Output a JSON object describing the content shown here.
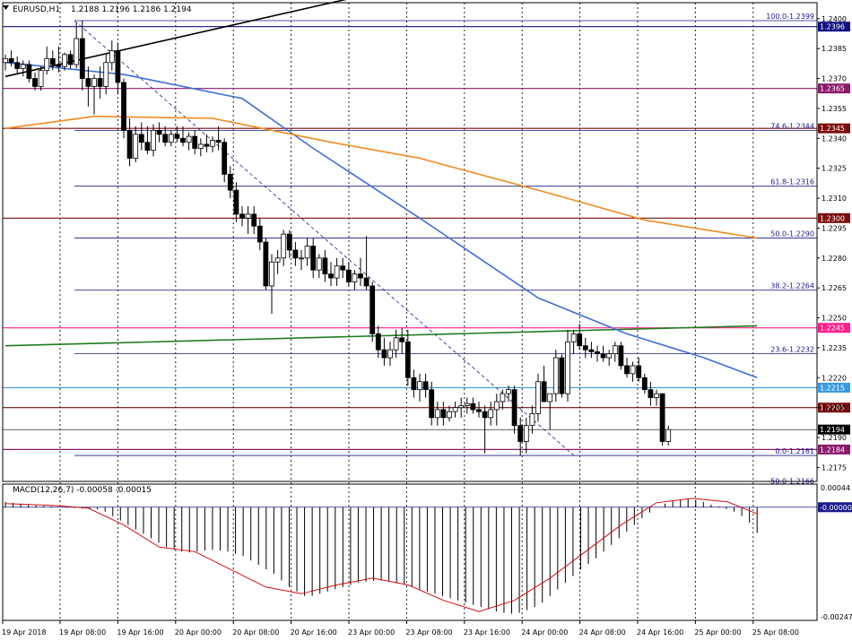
{
  "header": {
    "symbol": "EURUSD,H1",
    "ohlc": "1.2188 1.2196 1.2186 1.2194"
  },
  "macd_header": "MACD(12,26,7) -0.00058 -0.00015",
  "chart_data": {
    "type": "candlestick",
    "timeframe": "H1",
    "price_axis": {
      "min": 1.2168,
      "max": 1.2408,
      "ticks": [
        "1.2400",
        "1.2385",
        "1.2370",
        "1.2355",
        "1.2340",
        "1.2325",
        "1.2310",
        "1.2295",
        "1.2280",
        "1.2265",
        "1.2250",
        "1.2235",
        "1.2220",
        "1.2205",
        "1.2190",
        "1.2175"
      ]
    },
    "time_labels": [
      "19 Apr 2018",
      "19 Apr 08:00",
      "19 Apr 16:00",
      "20 Apr 00:00",
      "20 Apr 08:00",
      "20 Apr 16:00",
      "23 Apr 00:00",
      "23 Apr 08:00",
      "23 Apr 16:00",
      "24 Apr 00:00",
      "24 Apr 08:00",
      "24 Apr 16:00",
      "25 Apr 00:00",
      "25 Apr 08:00"
    ],
    "candles": [
      {
        "o": 1.2378,
        "h": 1.2382,
        "l": 1.2374,
        "c": 1.238
      },
      {
        "o": 1.238,
        "h": 1.2384,
        "l": 1.2376,
        "c": 1.2378
      },
      {
        "o": 1.2378,
        "h": 1.2381,
        "l": 1.2372,
        "c": 1.2375
      },
      {
        "o": 1.2375,
        "h": 1.2379,
        "l": 1.2371,
        "c": 1.2377
      },
      {
        "o": 1.2377,
        "h": 1.2379,
        "l": 1.2368,
        "c": 1.237
      },
      {
        "o": 1.237,
        "h": 1.2373,
        "l": 1.2364,
        "c": 1.2366
      },
      {
        "o": 1.2366,
        "h": 1.2376,
        "l": 1.2364,
        "c": 1.2374
      },
      {
        "o": 1.2374,
        "h": 1.2386,
        "l": 1.2372,
        "c": 1.238
      },
      {
        "o": 1.238,
        "h": 1.2384,
        "l": 1.2374,
        "c": 1.2377
      },
      {
        "o": 1.2377,
        "h": 1.2386,
        "l": 1.2373,
        "c": 1.2376
      },
      {
        "o": 1.2376,
        "h": 1.2383,
        "l": 1.2374,
        "c": 1.2382
      },
      {
        "o": 1.2382,
        "h": 1.2384,
        "l": 1.2375,
        "c": 1.2377
      },
      {
        "o": 1.2377,
        "h": 1.2398,
        "l": 1.2375,
        "c": 1.239
      },
      {
        "o": 1.239,
        "h": 1.2399,
        "l": 1.2364,
        "c": 1.237
      },
      {
        "o": 1.237,
        "h": 1.2376,
        "l": 1.2356,
        "c": 1.2366
      },
      {
        "o": 1.2366,
        "h": 1.2372,
        "l": 1.2352,
        "c": 1.237
      },
      {
        "o": 1.237,
        "h": 1.2376,
        "l": 1.236,
        "c": 1.2366
      },
      {
        "o": 1.2366,
        "h": 1.2382,
        "l": 1.2362,
        "c": 1.2378
      },
      {
        "o": 1.2378,
        "h": 1.2389,
        "l": 1.2374,
        "c": 1.2384
      },
      {
        "o": 1.2384,
        "h": 1.2388,
        "l": 1.2362,
        "c": 1.2368
      },
      {
        "o": 1.2368,
        "h": 1.237,
        "l": 1.234,
        "c": 1.2344
      },
      {
        "o": 1.2344,
        "h": 1.235,
        "l": 1.2326,
        "c": 1.233
      },
      {
        "o": 1.233,
        "h": 1.2346,
        "l": 1.2328,
        "c": 1.2342
      },
      {
        "o": 1.2342,
        "h": 1.2348,
        "l": 1.2334,
        "c": 1.2338
      },
      {
        "o": 1.2338,
        "h": 1.2346,
        "l": 1.2332,
        "c": 1.2334
      },
      {
        "o": 1.2334,
        "h": 1.2347,
        "l": 1.2331,
        "c": 1.2344
      },
      {
        "o": 1.2344,
        "h": 1.2348,
        "l": 1.2338,
        "c": 1.2342
      },
      {
        "o": 1.2342,
        "h": 1.2346,
        "l": 1.2336,
        "c": 1.2338
      },
      {
        "o": 1.2338,
        "h": 1.2344,
        "l": 1.2336,
        "c": 1.2342
      },
      {
        "o": 1.2342,
        "h": 1.2346,
        "l": 1.2338,
        "c": 1.234
      },
      {
        "o": 1.234,
        "h": 1.2346,
        "l": 1.2336,
        "c": 1.2338
      },
      {
        "o": 1.2338,
        "h": 1.2343,
        "l": 1.2334,
        "c": 1.2341
      },
      {
        "o": 1.2341,
        "h": 1.2344,
        "l": 1.2332,
        "c": 1.2335
      },
      {
        "o": 1.2335,
        "h": 1.234,
        "l": 1.2331,
        "c": 1.2337
      },
      {
        "o": 1.2337,
        "h": 1.2342,
        "l": 1.2333,
        "c": 1.2336
      },
      {
        "o": 1.2336,
        "h": 1.2341,
        "l": 1.2333,
        "c": 1.2339
      },
      {
        "o": 1.2339,
        "h": 1.2346,
        "l": 1.2334,
        "c": 1.2338
      },
      {
        "o": 1.2338,
        "h": 1.234,
        "l": 1.2318,
        "c": 1.2322
      },
      {
        "o": 1.2322,
        "h": 1.2326,
        "l": 1.231,
        "c": 1.2314
      },
      {
        "o": 1.2314,
        "h": 1.2318,
        "l": 1.2298,
        "c": 1.2302
      },
      {
        "o": 1.2302,
        "h": 1.2306,
        "l": 1.2296,
        "c": 1.23
      },
      {
        "o": 1.23,
        "h": 1.2306,
        "l": 1.2292,
        "c": 1.2302
      },
      {
        "o": 1.2302,
        "h": 1.2306,
        "l": 1.2292,
        "c": 1.2296
      },
      {
        "o": 1.2296,
        "h": 1.23,
        "l": 1.2284,
        "c": 1.2288
      },
      {
        "o": 1.2288,
        "h": 1.229,
        "l": 1.2264,
        "c": 1.2266
      },
      {
        "o": 1.2266,
        "h": 1.2282,
        "l": 1.2252,
        "c": 1.2278
      },
      {
        "o": 1.2278,
        "h": 1.2284,
        "l": 1.2272,
        "c": 1.228
      },
      {
        "o": 1.228,
        "h": 1.2294,
        "l": 1.2276,
        "c": 1.2292
      },
      {
        "o": 1.2292,
        "h": 1.2294,
        "l": 1.228,
        "c": 1.2284
      },
      {
        "o": 1.2284,
        "h": 1.2288,
        "l": 1.2276,
        "c": 1.228
      },
      {
        "o": 1.228,
        "h": 1.2284,
        "l": 1.2274,
        "c": 1.228
      },
      {
        "o": 1.228,
        "h": 1.229,
        "l": 1.2276,
        "c": 1.2286
      },
      {
        "o": 1.2286,
        "h": 1.229,
        "l": 1.227,
        "c": 1.2274
      },
      {
        "o": 1.2274,
        "h": 1.2282,
        "l": 1.227,
        "c": 1.228
      },
      {
        "o": 1.228,
        "h": 1.2284,
        "l": 1.2268,
        "c": 1.2272
      },
      {
        "o": 1.2272,
        "h": 1.2278,
        "l": 1.2266,
        "c": 1.227
      },
      {
        "o": 1.227,
        "h": 1.228,
        "l": 1.2266,
        "c": 1.2276
      },
      {
        "o": 1.2276,
        "h": 1.228,
        "l": 1.227,
        "c": 1.2274
      },
      {
        "o": 1.2274,
        "h": 1.2278,
        "l": 1.2266,
        "c": 1.2268
      },
      {
        "o": 1.2268,
        "h": 1.2274,
        "l": 1.2264,
        "c": 1.2272
      },
      {
        "o": 1.2272,
        "h": 1.228,
        "l": 1.2266,
        "c": 1.227
      },
      {
        "o": 1.227,
        "h": 1.2291,
        "l": 1.2264,
        "c": 1.2266
      },
      {
        "o": 1.2266,
        "h": 1.2268,
        "l": 1.2238,
        "c": 1.2242
      },
      {
        "o": 1.2242,
        "h": 1.2246,
        "l": 1.223,
        "c": 1.2234
      },
      {
        "o": 1.2234,
        "h": 1.224,
        "l": 1.2226,
        "c": 1.223
      },
      {
        "o": 1.223,
        "h": 1.2238,
        "l": 1.2226,
        "c": 1.2234
      },
      {
        "o": 1.2234,
        "h": 1.2244,
        "l": 1.223,
        "c": 1.224
      },
      {
        "o": 1.224,
        "h": 1.2245,
        "l": 1.2232,
        "c": 1.2238
      },
      {
        "o": 1.2238,
        "h": 1.2244,
        "l": 1.2216,
        "c": 1.222
      },
      {
        "o": 1.222,
        "h": 1.2224,
        "l": 1.221,
        "c": 1.2214
      },
      {
        "o": 1.2214,
        "h": 1.2222,
        "l": 1.2208,
        "c": 1.2218
      },
      {
        "o": 1.2218,
        "h": 1.2222,
        "l": 1.221,
        "c": 1.2214
      },
      {
        "o": 1.2214,
        "h": 1.2218,
        "l": 1.2196,
        "c": 1.22
      },
      {
        "o": 1.22,
        "h": 1.2208,
        "l": 1.2196,
        "c": 1.2204
      },
      {
        "o": 1.2204,
        "h": 1.2208,
        "l": 1.2196,
        "c": 1.22
      },
      {
        "o": 1.22,
        "h": 1.2206,
        "l": 1.2198,
        "c": 1.2203
      },
      {
        "o": 1.2203,
        "h": 1.2208,
        "l": 1.22,
        "c": 1.2205
      },
      {
        "o": 1.2205,
        "h": 1.221,
        "l": 1.22,
        "c": 1.2206
      },
      {
        "o": 1.2206,
        "h": 1.221,
        "l": 1.2202,
        "c": 1.2207
      },
      {
        "o": 1.2207,
        "h": 1.221,
        "l": 1.2202,
        "c": 1.2204
      },
      {
        "o": 1.2204,
        "h": 1.2208,
        "l": 1.22,
        "c": 1.2203
      },
      {
        "o": 1.2203,
        "h": 1.2206,
        "l": 1.2182,
        "c": 1.22
      },
      {
        "o": 1.22,
        "h": 1.2208,
        "l": 1.2196,
        "c": 1.2204
      },
      {
        "o": 1.2204,
        "h": 1.2212,
        "l": 1.2196,
        "c": 1.2208
      },
      {
        "o": 1.2208,
        "h": 1.2214,
        "l": 1.2204,
        "c": 1.2212
      },
      {
        "o": 1.2212,
        "h": 1.2216,
        "l": 1.2208,
        "c": 1.2214
      },
      {
        "o": 1.2214,
        "h": 1.2216,
        "l": 1.2192,
        "c": 1.2196
      },
      {
        "o": 1.2196,
        "h": 1.22,
        "l": 1.2181,
        "c": 1.2188
      },
      {
        "o": 1.2188,
        "h": 1.22,
        "l": 1.2182,
        "c": 1.2196
      },
      {
        "o": 1.2196,
        "h": 1.2206,
        "l": 1.2192,
        "c": 1.2202
      },
      {
        "o": 1.2202,
        "h": 1.2222,
        "l": 1.2198,
        "c": 1.2218
      },
      {
        "o": 1.2218,
        "h": 1.2226,
        "l": 1.221,
        "c": 1.2208
      },
      {
        "o": 1.2208,
        "h": 1.2212,
        "l": 1.2194,
        "c": 1.2212
      },
      {
        "o": 1.2212,
        "h": 1.2234,
        "l": 1.2208,
        "c": 1.223
      },
      {
        "o": 1.223,
        "h": 1.2232,
        "l": 1.221,
        "c": 1.2212
      },
      {
        "o": 1.2212,
        "h": 1.2244,
        "l": 1.2208,
        "c": 1.2238
      },
      {
        "o": 1.2238,
        "h": 1.2244,
        "l": 1.2232,
        "c": 1.2242
      },
      {
        "o": 1.2242,
        "h": 1.2247,
        "l": 1.2234,
        "c": 1.2236
      },
      {
        "o": 1.2236,
        "h": 1.224,
        "l": 1.223,
        "c": 1.2234
      },
      {
        "o": 1.2234,
        "h": 1.2238,
        "l": 1.223,
        "c": 1.2233
      },
      {
        "o": 1.2233,
        "h": 1.2236,
        "l": 1.2228,
        "c": 1.2232
      },
      {
        "o": 1.2232,
        "h": 1.2236,
        "l": 1.2228,
        "c": 1.223
      },
      {
        "o": 1.223,
        "h": 1.2234,
        "l": 1.2226,
        "c": 1.2232
      },
      {
        "o": 1.2232,
        "h": 1.2238,
        "l": 1.2228,
        "c": 1.2236
      },
      {
        "o": 1.2236,
        "h": 1.2238,
        "l": 1.2224,
        "c": 1.2226
      },
      {
        "o": 1.2226,
        "h": 1.223,
        "l": 1.222,
        "c": 1.2222
      },
      {
        "o": 1.2222,
        "h": 1.2228,
        "l": 1.2218,
        "c": 1.2226
      },
      {
        "o": 1.2226,
        "h": 1.223,
        "l": 1.2218,
        "c": 1.222
      },
      {
        "o": 1.222,
        "h": 1.2222,
        "l": 1.2212,
        "c": 1.2214
      },
      {
        "o": 1.2214,
        "h": 1.2218,
        "l": 1.2206,
        "c": 1.221
      },
      {
        "o": 1.221,
        "h": 1.2214,
        "l": 1.2206,
        "c": 1.2212
      },
      {
        "o": 1.2212,
        "h": 1.2212,
        "l": 1.2186,
        "c": 1.2188
      },
      {
        "o": 1.2188,
        "h": 1.2196,
        "l": 1.2186,
        "c": 1.2194
      }
    ],
    "horizontal_lines": [
      {
        "price": 1.2396,
        "tag": "1.2396",
        "color": "#101080"
      },
      {
        "price": 1.2365,
        "tag": "1.2365",
        "color": "#8b1a6b"
      },
      {
        "price": 1.2345,
        "tag": "1.2345",
        "color": "#7a0d0d"
      },
      {
        "price": 1.23,
        "tag": "1.2300",
        "color": "#7a0d0d"
      },
      {
        "price": 1.2245,
        "tag": "1.2245",
        "color": "#ff1e8c"
      },
      {
        "price": 1.2215,
        "tag": "1.2215",
        "color": "#3a9ae0"
      },
      {
        "price": 1.2205,
        "tag": "1.2205",
        "color": "#7a0d0d"
      },
      {
        "price": 1.2194,
        "tag": "1.2194",
        "color": "#000000"
      },
      {
        "price": 1.2184,
        "tag": "1.2184",
        "color": "#8b1a6b"
      }
    ],
    "fibonacci": [
      {
        "price": 1.2399,
        "label": "100.0-1.2399"
      },
      {
        "price": 1.2344,
        "label": "74.6-1.2344"
      },
      {
        "price": 1.2316,
        "label": "61.8-1.2316"
      },
      {
        "price": 1.229,
        "label": "50.0-1.2290"
      },
      {
        "price": 1.2264,
        "label": "38.2-1.2264"
      },
      {
        "price": 1.2232,
        "label": "23.6-1.2232"
      },
      {
        "price": 1.2181,
        "label": "0.0-1.2181"
      },
      {
        "price": 1.2166,
        "label": "-50.0-1.2166"
      }
    ],
    "moving_averages": [
      {
        "name": "fast",
        "color": "#3f6fd6",
        "points": [
          [
            0,
            1.2378
          ],
          [
            20,
            1.2372
          ],
          [
            40,
            1.236
          ],
          [
            52,
            1.2335
          ],
          [
            70,
            1.23
          ],
          [
            90,
            1.226
          ],
          [
            105,
            1.2242
          ],
          [
            118,
            1.223
          ],
          [
            127,
            1.222
          ]
        ]
      },
      {
        "name": "slow",
        "color": "#f08a1c",
        "points": [
          [
            0,
            1.2345
          ],
          [
            15,
            1.2351
          ],
          [
            35,
            1.235
          ],
          [
            55,
            1.2338
          ],
          [
            70,
            1.233
          ],
          [
            90,
            1.2314
          ],
          [
            108,
            1.2299
          ],
          [
            127,
            1.229
          ]
        ]
      }
    ],
    "trendlines": [
      {
        "color": "#000000",
        "from": [
          0,
          1.2371
        ],
        "to": [
          70,
          1.2418
        ]
      },
      {
        "color": "#1f7a1f",
        "from": [
          0,
          1.2236
        ],
        "to": [
          127,
          1.2246
        ]
      }
    ],
    "macd": {
      "axis_max": 0.00044,
      "axis_min": -0.00247,
      "ticks": [
        "0.00044",
        "-0.00000",
        "-0.00247"
      ],
      "hist": [
        0.00012,
        0.0001,
        8e-05,
        6e-05,
        4e-05,
        3e-05,
        2e-05,
        0.0,
        -1e-05,
        -2e-05,
        -3e-05,
        -4e-05,
        -5e-05,
        -0.0001,
        -0.0002,
        -0.0003,
        -0.0004,
        -0.0005,
        -0.0006,
        -0.0007,
        -0.0008,
        -0.0009,
        -0.00095,
        -0.001,
        -0.00102,
        -0.001,
        -0.00098,
        -0.00096,
        -0.00098,
        -0.001,
        -0.00105,
        -0.0011,
        -0.0012,
        -0.0013,
        -0.0014,
        -0.0015,
        -0.00165,
        -0.0018,
        -0.0019,
        -0.002,
        -0.002,
        -0.00195,
        -0.0019,
        -0.00185,
        -0.0018,
        -0.00175,
        -0.0017,
        -0.00168,
        -0.00166,
        -0.00165,
        -0.00167,
        -0.0017,
        -0.00175,
        -0.0018,
        -0.00185,
        -0.0019,
        -0.00195,
        -0.002,
        -0.00205,
        -0.0021,
        -0.00215,
        -0.0022,
        -0.00225,
        -0.0023,
        -0.00235,
        -0.00238,
        -0.0024,
        -0.00238,
        -0.00232,
        -0.00225,
        -0.00215,
        -0.002,
        -0.00185,
        -0.0017,
        -0.00155,
        -0.0014,
        -0.00128,
        -0.00115,
        -0.001,
        -0.00085,
        -0.0007,
        -0.00055,
        -0.0004,
        -0.00025,
        -0.00012,
        0.0,
        8e-05,
        0.00014,
        0.00018,
        0.0002,
        0.00016,
        0.00012,
        6e-05,
        2e-05,
        -4e-05,
        -0.0001,
        -0.0002,
        -0.00035,
        -0.00058
      ],
      "signal": [
        [
          0,
          8e-05
        ],
        [
          8,
          4e-05
        ],
        [
          14,
          -2e-05
        ],
        [
          20,
          -0.0004
        ],
        [
          26,
          -0.0009
        ],
        [
          32,
          -0.001
        ],
        [
          38,
          -0.0014
        ],
        [
          44,
          -0.0018
        ],
        [
          50,
          -0.00195
        ],
        [
          56,
          -0.00175
        ],
        [
          62,
          -0.0016
        ],
        [
          68,
          -0.00175
        ],
        [
          74,
          -0.0021
        ],
        [
          80,
          -0.00235
        ],
        [
          86,
          -0.0021
        ],
        [
          92,
          -0.0016
        ],
        [
          98,
          -0.001
        ],
        [
          104,
          -0.0004
        ],
        [
          110,
          0.0001
        ],
        [
          116,
          0.0002
        ],
        [
          122,
          0.00012
        ],
        [
          127,
          -0.00015
        ]
      ]
    }
  }
}
